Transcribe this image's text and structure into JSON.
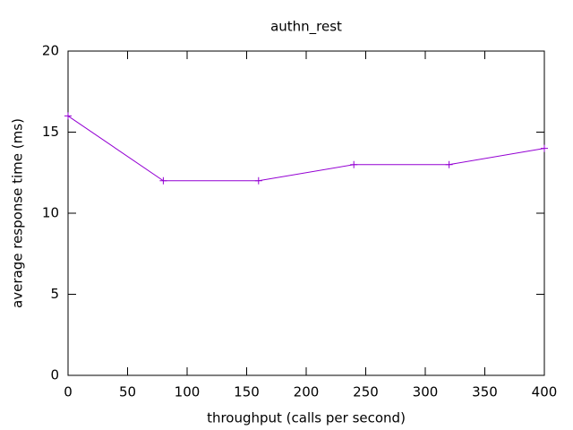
{
  "chart_data": {
    "type": "line",
    "title": "authn_rest",
    "x_label": "throughput (calls per second)",
    "y_label": "average response time (ms)",
    "x": [
      0,
      80,
      160,
      240,
      320,
      400
    ],
    "series": [
      {
        "color": "#9400d3",
        "values": [
          16,
          12,
          12,
          13,
          13,
          14
        ]
      }
    ],
    "xlim": [
      0,
      400
    ],
    "xticks": [
      0,
      50,
      100,
      150,
      200,
      250,
      300,
      350,
      400
    ],
    "ylim": [
      0,
      20
    ],
    "yticks": [
      0,
      5,
      10,
      15,
      20
    ],
    "grid": false
  }
}
